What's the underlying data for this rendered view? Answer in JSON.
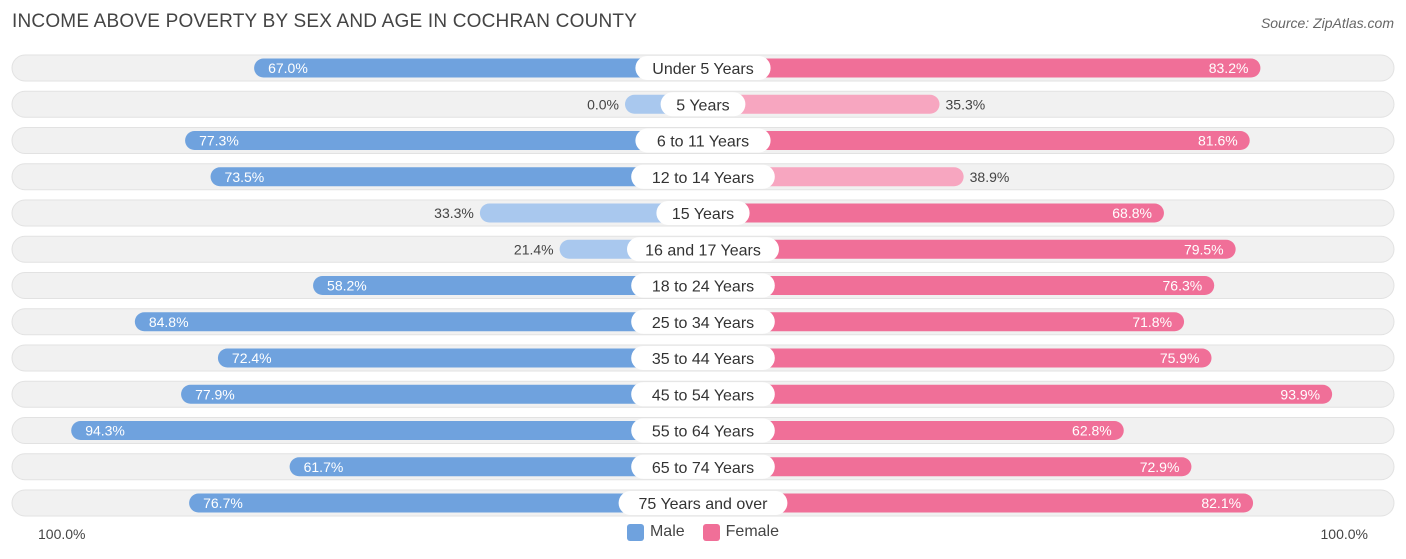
{
  "title": "INCOME ABOVE POVERTY BY SEX AND AGE IN COCHRAN COUNTY",
  "source": "Source: ZipAtlas.com",
  "axis": {
    "left_label": "100.0%",
    "right_label": "100.0%"
  },
  "legend": [
    {
      "label": "Male",
      "color": "#6fa2de"
    },
    {
      "label": "Female",
      "color": "#f06f98"
    }
  ],
  "colors": {
    "male_strong": "#6fa2de",
    "male_light": "#a9c8ee",
    "female_strong": "#f06f98",
    "female_light": "#f7a6c0",
    "track": "#f1f1f1"
  },
  "chart_data": {
    "type": "bar",
    "orientation": "horizontal-diverging",
    "title": "INCOME ABOVE POVERTY BY SEX AND AGE IN COCHRAN COUNTY",
    "xlim": [
      0,
      100
    ],
    "unit": "%",
    "categories": [
      "Under 5 Years",
      "5 Years",
      "6 to 11 Years",
      "12 to 14 Years",
      "15 Years",
      "16 and 17 Years",
      "18 to 24 Years",
      "25 to 34 Years",
      "35 to 44 Years",
      "45 to 54 Years",
      "55 to 64 Years",
      "65 to 74 Years",
      "75 Years and over"
    ],
    "series": [
      {
        "name": "Male",
        "values": [
          67.0,
          0.0,
          77.3,
          73.5,
          33.3,
          21.4,
          58.2,
          84.8,
          72.4,
          77.9,
          94.3,
          61.7,
          76.7
        ],
        "labels": [
          "67.0%",
          "0.0%",
          "77.3%",
          "73.5%",
          "33.3%",
          "21.4%",
          "58.2%",
          "84.8%",
          "72.4%",
          "77.9%",
          "94.3%",
          "61.7%",
          "76.7%"
        ]
      },
      {
        "name": "Female",
        "values": [
          83.2,
          35.3,
          81.6,
          38.9,
          68.8,
          79.5,
          76.3,
          71.8,
          75.9,
          93.9,
          62.8,
          72.9,
          82.1
        ],
        "labels": [
          "83.2%",
          "35.3%",
          "81.6%",
          "38.9%",
          "68.8%",
          "79.5%",
          "76.3%",
          "71.8%",
          "75.9%",
          "93.9%",
          "62.8%",
          "72.9%",
          "82.1%"
        ]
      }
    ]
  }
}
